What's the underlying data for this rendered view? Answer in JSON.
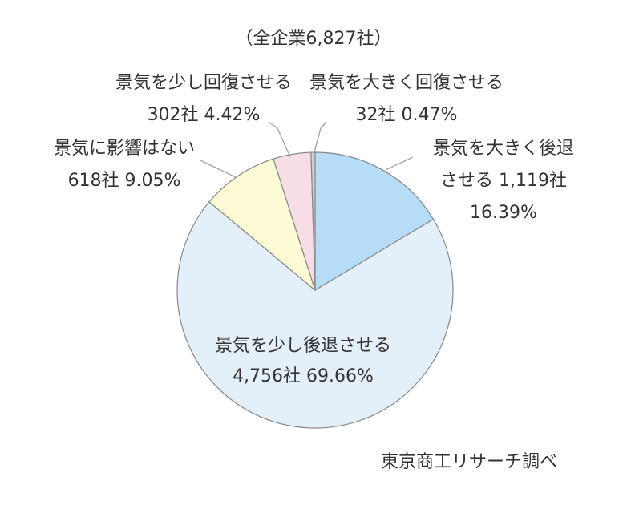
{
  "chart_data": {
    "type": "pie",
    "title": "（全企業6,827社）",
    "source": "東京商工リサーチ調べ",
    "slices": [
      {
        "label": "景気を大きく後退させる",
        "label_lines": [
          "景気を大きく後退",
          "させる 1,119社",
          "16.39%"
        ],
        "count": 1119,
        "percent": 16.39,
        "color": "#b7dcf8"
      },
      {
        "label": "景気を少し後退させる",
        "label_lines": [
          "景気を少し後退させる",
          "4,756社 69.66%"
        ],
        "count": 4756,
        "percent": 69.66,
        "color": "#e3f0fa"
      },
      {
        "label": "景気に影響はない",
        "label_lines": [
          "景気に影響はない",
          "618社 9.05%"
        ],
        "count": 618,
        "percent": 9.05,
        "color": "#fbfad5"
      },
      {
        "label": "景気を少し回復させる",
        "label_lines": [
          "景気を少し回復させる",
          "302社 4.42%"
        ],
        "count": 302,
        "percent": 4.42,
        "color": "#f6dde6"
      },
      {
        "label": "景気を大きく回復させる",
        "label_lines": [
          "景気を大きく回復させる",
          "32社 0.47%"
        ],
        "count": 32,
        "percent": 0.47,
        "color": "#cfcfcf"
      }
    ]
  }
}
